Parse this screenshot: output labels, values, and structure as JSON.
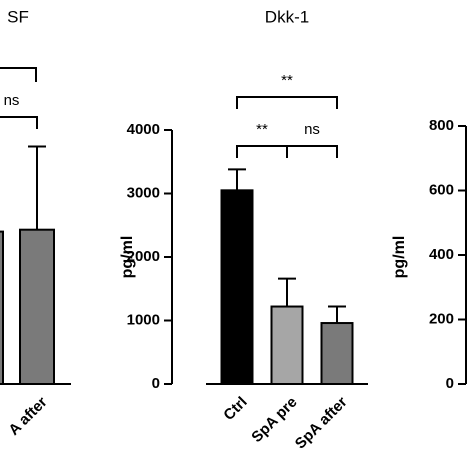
{
  "chart_data": [
    {
      "type": "bar",
      "title": "SF",
      "categories": [
        null,
        "A after"
      ],
      "values": [
        2400,
        2430
      ],
      "errors": [
        null,
        1310
      ],
      "colors": [
        "#7a7a7a",
        "#7a7a7a"
      ],
      "ylim": [
        0,
        4000
      ],
      "yticks": [],
      "annotations": [
        "ns"
      ]
    },
    {
      "type": "bar",
      "title": "Dkk-1",
      "ylabel": "pg/ml",
      "categories": [
        "Ctrl",
        "SpA pre",
        "SpA after"
      ],
      "values": [
        3050,
        1220,
        960
      ],
      "errors": [
        330,
        440,
        260
      ],
      "colors": [
        "#000000",
        "#a6a6a6",
        "#7a7a7a"
      ],
      "ylim": [
        0,
        4000
      ],
      "yticks": [
        0,
        1000,
        2000,
        3000,
        4000
      ],
      "annotations": [
        "**",
        "**",
        "ns"
      ]
    },
    {
      "type": "bar",
      "ylabel": "pg/ml",
      "categories": [],
      "values": [],
      "errors": [],
      "colors": [],
      "ylim": [
        0,
        800
      ],
      "yticks": [
        0,
        200,
        400,
        600,
        800
      ],
      "annotations": []
    }
  ]
}
